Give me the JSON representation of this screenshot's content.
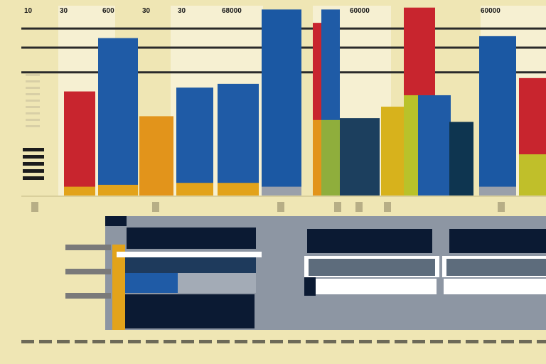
{
  "chart_data": {
    "type": "bar",
    "top_labels": [
      "10",
      "30",
      "600",
      "30",
      "30",
      "68000",
      "60000",
      "60000"
    ],
    "ylim": [
      0,
      100
    ],
    "gridlines": [
      88,
      78,
      65
    ],
    "bars": [
      {
        "value": 55,
        "color": "#c8252e",
        "base": 5,
        "base_color": "#e2a31b"
      },
      {
        "value": 83,
        "color": "#1f5ba6",
        "base": 6,
        "base_color": "#e2a31b"
      },
      {
        "value": 42,
        "color": "#e2941b",
        "base": 0,
        "base_color": "#e2941b"
      },
      {
        "value": 57,
        "color": "#1f5ba6",
        "base": 7,
        "base_color": "#e2a31b"
      },
      {
        "value": 59,
        "color": "#1f5ba6",
        "base": 7,
        "base_color": "#e2a31b"
      },
      {
        "value": 98,
        "color": "#1b58a3",
        "base": 5,
        "base_color": "#9aa0aa"
      },
      {
        "value": 91,
        "color": "#c8252e",
        "base": 40,
        "base_color": "#e2941b"
      },
      {
        "value": 98,
        "color": "#1f5ba6",
        "base": 40,
        "base_color": "#8fae3c"
      },
      {
        "value": 41,
        "color": "#1c3f5e",
        "base": 0,
        "base_color": "#1c3f5e"
      },
      {
        "value": 47,
        "color": "#d7b21c",
        "base": 0,
        "base_color": "#d7b21c"
      },
      {
        "value": 99,
        "color": "#c8252e",
        "base": 53,
        "base_color": "#b9c22a"
      },
      {
        "value": 53,
        "color": "#1f5ba6",
        "base": 0,
        "base_color": "#1f5ba6"
      },
      {
        "value": 39,
        "color": "#0e3550",
        "base": 0,
        "base_color": "#0e3550"
      },
      {
        "value": 84,
        "color": "#1b58a3",
        "base": 5,
        "base_color": "#9aa0aa"
      },
      {
        "value": 62,
        "color": "#c8252e",
        "base": 22,
        "base_color": "#c0bf2a"
      }
    ]
  },
  "colors": {
    "background": "#efe6b4",
    "navy": "#0b1a33",
    "slate": "#8d96a3",
    "blue": "#1f5ba6",
    "gold": "#e2a31b",
    "white": "#ffffff"
  }
}
